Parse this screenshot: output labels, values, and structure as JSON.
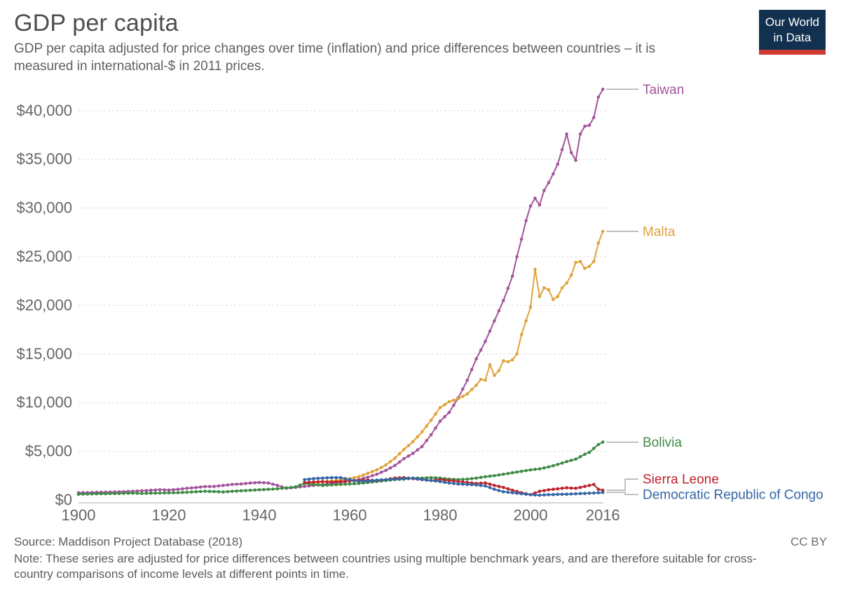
{
  "header": {
    "title": "GDP per capita",
    "subtitle": "GDP per capita adjusted for price changes over time (inflation) and price differences between countries – it is measured in international-$ in 2011 prices.",
    "logo": {
      "line1": "Our World",
      "line2": "in Data",
      "bg_color": "#12304F",
      "accent_color": "#CE3B32"
    }
  },
  "footer": {
    "source": "Source: Maddison Project Database (2018)",
    "license": "CC BY",
    "note": "Note: These series are adjusted for price differences between countries using multiple benchmark years, and are therefore suitable for cross-country comparisons of income levels at different points in time."
  },
  "chart_data": {
    "type": "line",
    "title": "GDP per capita",
    "xlabel": "",
    "ylabel": "",
    "unit": "international-$ in 2011 prices",
    "xlim": [
      1900,
      2016
    ],
    "ylim": [
      0,
      42500
    ],
    "grid": "horizontal-dashed",
    "legend_position": "right-end-labels",
    "x_ticks": [
      1900,
      1920,
      1940,
      1960,
      1980,
      2000,
      2016
    ],
    "y_ticks": [
      0,
      5000,
      10000,
      15000,
      20000,
      25000,
      30000,
      35000,
      40000
    ],
    "y_tick_labels": [
      "$0",
      "$5,000",
      "$10,000",
      "$15,000",
      "$20,000",
      "$25,000",
      "$30,000",
      "$35,000",
      "$40,000"
    ],
    "series": [
      {
        "name": "Taiwan",
        "color": "#A2559C",
        "label_dy": 0,
        "points": [
          [
            1900,
            750
          ],
          [
            1902,
            760
          ],
          [
            1904,
            790
          ],
          [
            1906,
            810
          ],
          [
            1908,
            830
          ],
          [
            1910,
            860
          ],
          [
            1912,
            900
          ],
          [
            1914,
            950
          ],
          [
            1916,
            1000
          ],
          [
            1918,
            1060
          ],
          [
            1920,
            1020
          ],
          [
            1922,
            1100
          ],
          [
            1924,
            1200
          ],
          [
            1926,
            1280
          ],
          [
            1928,
            1380
          ],
          [
            1930,
            1400
          ],
          [
            1932,
            1500
          ],
          [
            1934,
            1600
          ],
          [
            1936,
            1650
          ],
          [
            1938,
            1750
          ],
          [
            1940,
            1800
          ],
          [
            1942,
            1750
          ],
          [
            1944,
            1500
          ],
          [
            1946,
            1200
          ],
          [
            1948,
            1300
          ],
          [
            1950,
            1400
          ],
          [
            1952,
            1500
          ],
          [
            1954,
            1600
          ],
          [
            1956,
            1700
          ],
          [
            1958,
            1800
          ],
          [
            1960,
            1950
          ],
          [
            1962,
            2100
          ],
          [
            1964,
            2350
          ],
          [
            1966,
            2650
          ],
          [
            1968,
            3050
          ],
          [
            1970,
            3550
          ],
          [
            1972,
            4250
          ],
          [
            1974,
            4800
          ],
          [
            1976,
            5500
          ],
          [
            1978,
            6700
          ],
          [
            1980,
            8100
          ],
          [
            1982,
            9000
          ],
          [
            1984,
            10500
          ],
          [
            1986,
            12300
          ],
          [
            1988,
            14500
          ],
          [
            1990,
            16300
          ],
          [
            1992,
            18400
          ],
          [
            1994,
            20500
          ],
          [
            1996,
            23000
          ],
          [
            1997,
            25000
          ],
          [
            1998,
            26800
          ],
          [
            1999,
            28700
          ],
          [
            2000,
            30200
          ],
          [
            2001,
            31000
          ],
          [
            2002,
            30300
          ],
          [
            2003,
            31800
          ],
          [
            2004,
            32600
          ],
          [
            2005,
            33500
          ],
          [
            2006,
            34500
          ],
          [
            2007,
            36000
          ],
          [
            2008,
            37600
          ],
          [
            2009,
            35700
          ],
          [
            2010,
            34900
          ],
          [
            2011,
            37600
          ],
          [
            2012,
            38400
          ],
          [
            2013,
            38500
          ],
          [
            2014,
            39300
          ],
          [
            2015,
            41400
          ],
          [
            2016,
            42200
          ]
        ]
      },
      {
        "name": "Malta",
        "color": "#DFA33C",
        "label_dy": 0,
        "points": [
          [
            1950,
            1700
          ],
          [
            1952,
            1750
          ],
          [
            1954,
            1850
          ],
          [
            1956,
            1950
          ],
          [
            1958,
            2050
          ],
          [
            1960,
            2200
          ],
          [
            1962,
            2400
          ],
          [
            1964,
            2750
          ],
          [
            1966,
            3100
          ],
          [
            1968,
            3600
          ],
          [
            1970,
            4300
          ],
          [
            1972,
            5200
          ],
          [
            1974,
            6000
          ],
          [
            1976,
            7000
          ],
          [
            1978,
            8200
          ],
          [
            1980,
            9500
          ],
          [
            1982,
            10100
          ],
          [
            1984,
            10400
          ],
          [
            1986,
            10900
          ],
          [
            1988,
            11800
          ],
          [
            1989,
            12400
          ],
          [
            1990,
            12300
          ],
          [
            1991,
            13900
          ],
          [
            1992,
            12800
          ],
          [
            1993,
            13300
          ],
          [
            1994,
            14300
          ],
          [
            1995,
            14200
          ],
          [
            1996,
            14400
          ],
          [
            1997,
            15000
          ],
          [
            1998,
            17000
          ],
          [
            1999,
            18400
          ],
          [
            2000,
            19800
          ],
          [
            2001,
            23700
          ],
          [
            2002,
            20900
          ],
          [
            2003,
            21800
          ],
          [
            2004,
            21600
          ],
          [
            2005,
            20600
          ],
          [
            2006,
            20900
          ],
          [
            2007,
            21800
          ],
          [
            2008,
            22300
          ],
          [
            2009,
            23100
          ],
          [
            2010,
            24400
          ],
          [
            2011,
            24500
          ],
          [
            2012,
            23800
          ],
          [
            2013,
            24000
          ],
          [
            2014,
            24500
          ],
          [
            2015,
            26400
          ],
          [
            2016,
            27600
          ]
        ]
      },
      {
        "name": "Bolivia",
        "color": "#3D8B44",
        "label_dy": 0,
        "points": [
          [
            1900,
            600
          ],
          [
            1902,
            620
          ],
          [
            1904,
            640
          ],
          [
            1906,
            650
          ],
          [
            1908,
            670
          ],
          [
            1910,
            690
          ],
          [
            1912,
            710
          ],
          [
            1914,
            680
          ],
          [
            1916,
            700
          ],
          [
            1918,
            720
          ],
          [
            1920,
            740
          ],
          [
            1922,
            760
          ],
          [
            1924,
            800
          ],
          [
            1926,
            850
          ],
          [
            1928,
            900
          ],
          [
            1930,
            870
          ],
          [
            1932,
            830
          ],
          [
            1934,
            900
          ],
          [
            1936,
            950
          ],
          [
            1938,
            1000
          ],
          [
            1940,
            1050
          ],
          [
            1942,
            1100
          ],
          [
            1944,
            1150
          ],
          [
            1946,
            1250
          ],
          [
            1948,
            1350
          ],
          [
            1950,
            1700
          ],
          [
            1952,
            1600
          ],
          [
            1954,
            1500
          ],
          [
            1956,
            1550
          ],
          [
            1958,
            1600
          ],
          [
            1960,
            1650
          ],
          [
            1962,
            1700
          ],
          [
            1964,
            1800
          ],
          [
            1966,
            1900
          ],
          [
            1968,
            2000
          ],
          [
            1970,
            2100
          ],
          [
            1972,
            2150
          ],
          [
            1974,
            2250
          ],
          [
            1976,
            2250
          ],
          [
            1978,
            2300
          ],
          [
            1980,
            2250
          ],
          [
            1982,
            2150
          ],
          [
            1984,
            2100
          ],
          [
            1986,
            2150
          ],
          [
            1988,
            2250
          ],
          [
            1990,
            2400
          ],
          [
            1992,
            2500
          ],
          [
            1994,
            2650
          ],
          [
            1996,
            2800
          ],
          [
            1998,
            2950
          ],
          [
            2000,
            3100
          ],
          [
            2002,
            3200
          ],
          [
            2004,
            3400
          ],
          [
            2006,
            3650
          ],
          [
            2008,
            3950
          ],
          [
            2010,
            4200
          ],
          [
            2012,
            4700
          ],
          [
            2013,
            4900
          ],
          [
            2014,
            5300
          ],
          [
            2015,
            5700
          ],
          [
            2016,
            5950
          ]
        ]
      },
      {
        "name": "Sierra Leone",
        "color": "#BE232D",
        "label_dy": -16,
        "points": [
          [
            1950,
            1800
          ],
          [
            1952,
            1850
          ],
          [
            1954,
            1900
          ],
          [
            1956,
            1850
          ],
          [
            1958,
            1900
          ],
          [
            1960,
            1950
          ],
          [
            1962,
            2000
          ],
          [
            1964,
            2050
          ],
          [
            1966,
            2000
          ],
          [
            1968,
            2100
          ],
          [
            1970,
            2250
          ],
          [
            1972,
            2300
          ],
          [
            1974,
            2200
          ],
          [
            1976,
            2100
          ],
          [
            1978,
            2000
          ],
          [
            1980,
            2100
          ],
          [
            1982,
            2000
          ],
          [
            1984,
            1900
          ],
          [
            1986,
            1800
          ],
          [
            1988,
            1700
          ],
          [
            1990,
            1750
          ],
          [
            1992,
            1500
          ],
          [
            1994,
            1300
          ],
          [
            1996,
            1000
          ],
          [
            1998,
            750
          ],
          [
            2000,
            550
          ],
          [
            2002,
            900
          ],
          [
            2004,
            1050
          ],
          [
            2006,
            1150
          ],
          [
            2008,
            1250
          ],
          [
            2010,
            1200
          ],
          [
            2012,
            1400
          ],
          [
            2013,
            1500
          ],
          [
            2014,
            1600
          ],
          [
            2015,
            1100
          ],
          [
            2016,
            1000
          ]
        ]
      },
      {
        "name": "Democratic Republic of Congo",
        "color": "#3566A5",
        "label_dy": 3,
        "points": [
          [
            1950,
            2100
          ],
          [
            1952,
            2200
          ],
          [
            1954,
            2250
          ],
          [
            1956,
            2300
          ],
          [
            1958,
            2300
          ],
          [
            1960,
            2100
          ],
          [
            1962,
            1900
          ],
          [
            1964,
            1950
          ],
          [
            1966,
            2050
          ],
          [
            1968,
            2100
          ],
          [
            1970,
            2150
          ],
          [
            1972,
            2200
          ],
          [
            1974,
            2250
          ],
          [
            1976,
            2100
          ],
          [
            1978,
            2000
          ],
          [
            1980,
            1900
          ],
          [
            1982,
            1750
          ],
          [
            1984,
            1650
          ],
          [
            1986,
            1600
          ],
          [
            1988,
            1550
          ],
          [
            1990,
            1450
          ],
          [
            1992,
            1100
          ],
          [
            1994,
            850
          ],
          [
            1996,
            750
          ],
          [
            1998,
            650
          ],
          [
            2000,
            550
          ],
          [
            2002,
            500
          ],
          [
            2004,
            550
          ],
          [
            2006,
            580
          ],
          [
            2008,
            600
          ],
          [
            2010,
            640
          ],
          [
            2012,
            680
          ],
          [
            2014,
            720
          ],
          [
            2016,
            780
          ]
        ]
      }
    ]
  }
}
